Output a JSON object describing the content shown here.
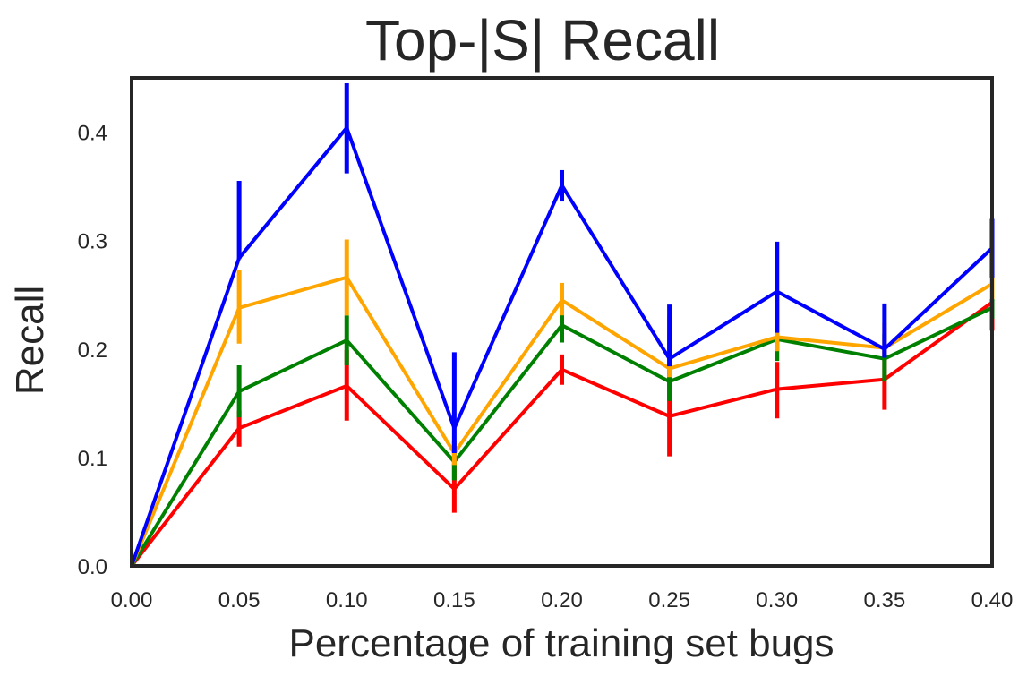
{
  "chart_data": {
    "type": "line",
    "title": "Top-|S| Recall",
    "xlabel": "Percentage of training set bugs",
    "ylabel": "Recall",
    "x": [
      0.0,
      0.05,
      0.1,
      0.15,
      0.2,
      0.25,
      0.3,
      0.35,
      0.4
    ],
    "xlim": [
      0.0,
      0.4
    ],
    "ylim": [
      0.0,
      0.45
    ],
    "x_ticks": [
      "0.00",
      "0.05",
      "0.10",
      "0.15",
      "0.20",
      "0.25",
      "0.30",
      "0.35",
      "0.40"
    ],
    "y_ticks": [
      "0.0",
      "0.1",
      "0.2",
      "0.3",
      "0.4"
    ],
    "grid": false,
    "legend": "none",
    "series": [
      {
        "color": "#ff0000",
        "values": [
          0.0,
          0.127,
          0.166,
          0.071,
          0.181,
          0.138,
          0.163,
          0.172,
          0.243
        ],
        "err_low": [
          0.0,
          0.11,
          0.134,
          0.049,
          0.167,
          0.101,
          0.136,
          0.144,
          0.217
        ],
        "err_high": [
          0.0,
          0.143,
          0.199,
          0.094,
          0.195,
          0.179,
          0.188,
          0.199,
          0.267
        ]
      },
      {
        "color": "#008000",
        "values": [
          0.0,
          0.161,
          0.208,
          0.096,
          0.222,
          0.17,
          0.209,
          0.191,
          0.238
        ],
        "err_low": [
          0.0,
          0.137,
          0.185,
          0.079,
          0.206,
          0.152,
          0.189,
          0.17,
          0.228
        ],
        "err_high": [
          0.0,
          0.185,
          0.231,
          0.115,
          0.236,
          0.215,
          0.25,
          0.214,
          0.248
        ]
      },
      {
        "color": "#ffa500",
        "values": [
          0.0,
          0.238,
          0.266,
          0.104,
          0.245,
          0.182,
          0.211,
          0.201,
          0.26
        ],
        "err_low": [
          0.0,
          0.205,
          0.231,
          0.093,
          0.231,
          0.174,
          0.198,
          0.195,
          0.246
        ],
        "err_high": [
          0.0,
          0.273,
          0.301,
          0.116,
          0.261,
          0.231,
          0.223,
          0.224,
          0.275
        ]
      },
      {
        "color": "#0000ff",
        "values": [
          0.0,
          0.284,
          0.404,
          0.127,
          0.351,
          0.191,
          0.253,
          0.2,
          0.293
        ],
        "err_low": [
          0.0,
          0.283,
          0.362,
          0.104,
          0.336,
          0.184,
          0.215,
          0.192,
          0.266
        ],
        "err_high": [
          0.0,
          0.355,
          0.445,
          0.197,
          0.365,
          0.241,
          0.299,
          0.242,
          0.32
        ]
      }
    ]
  }
}
